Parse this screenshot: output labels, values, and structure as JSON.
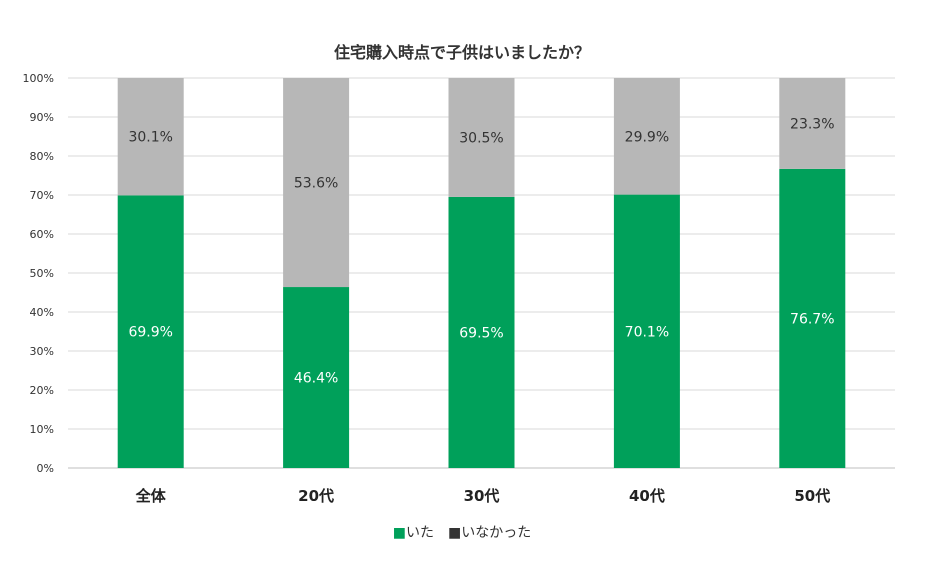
{
  "chart_data": {
    "type": "bar",
    "stacked": true,
    "title": "住宅購入時点で子供はいましたか？",
    "categories": [
      "全体",
      "20代",
      "30代",
      "40代",
      "50代"
    ],
    "series": [
      {
        "name": "いた",
        "values": [
          69.9,
          46.4,
          69.5,
          70.1,
          76.7
        ],
        "color": "#00a05a",
        "label_color": "#ffffff"
      },
      {
        "name": "いなかった",
        "values": [
          30.1,
          53.6,
          30.5,
          29.9,
          23.3
        ],
        "color": "#b7b7b7",
        "label_color": "#333333"
      }
    ],
    "data_labels": [
      [
        "69.9%",
        "46.4%",
        "69.5%",
        "70.1%",
        "76.7%"
      ],
      [
        "30.1%",
        "53.6%",
        "30.5%",
        "29.9%",
        "23.3%"
      ]
    ],
    "ylim": [
      0,
      100
    ],
    "yticks": [
      "0%",
      "10%",
      "20%",
      "30%",
      "40%",
      "50%",
      "60%",
      "70%",
      "80%",
      "90%",
      "100%"
    ],
    "grid": true,
    "legend": {
      "position": "bottom",
      "items": [
        "■いた",
        "■いなかった"
      ],
      "marker_colors": [
        "#00a05a",
        "#333333"
      ]
    }
  }
}
